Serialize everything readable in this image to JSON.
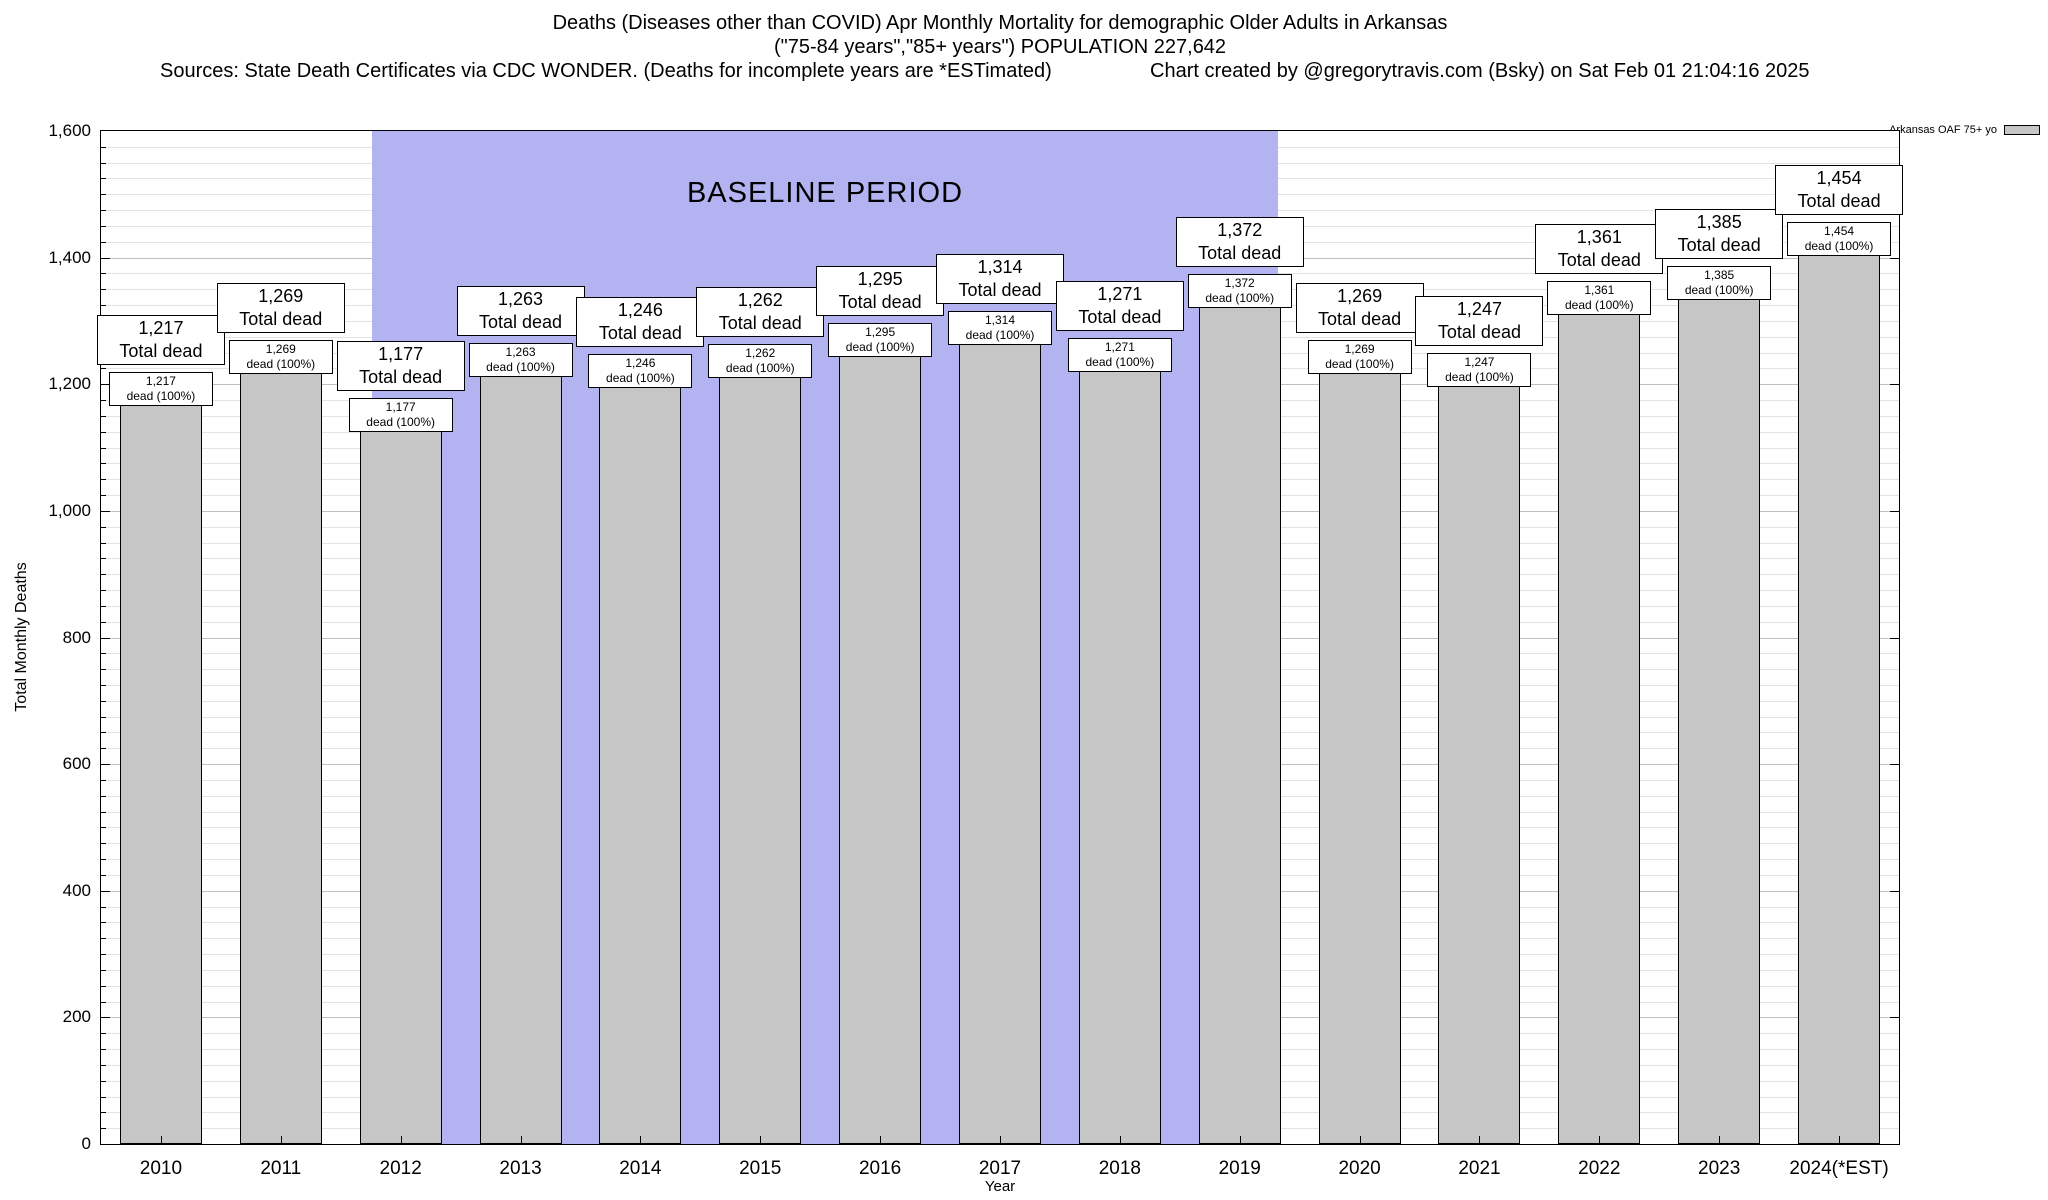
{
  "header": {
    "title_line1": "Deaths (Diseases other than COVID) Apr Monthly Mortality for demographic Older Adults in Arkansas",
    "title_line2": "(\"75-84 years\",\"85+ years\") POPULATION 227,642",
    "sources": "Sources: State Death Certificates via CDC WONDER. (Deaths for incomplete years are *ESTimated)",
    "credit": "Chart created by @gregorytravis.com (Bsky) on Sat Feb 01 21:04:16 2025"
  },
  "chart_data": {
    "type": "bar",
    "title": "Deaths (Diseases other than COVID) Apr Monthly Mortality for demographic Older Adults in Arkansas",
    "subtitle": "(\"75-84 years\",\"85+ years\") POPULATION 227,642",
    "xlabel": "Year",
    "ylabel": "Total Monthly Deaths",
    "ylim": [
      0,
      1600
    ],
    "ytick_interval": 200,
    "ytick_minor_interval": 25,
    "yticks": [
      "0",
      "200",
      "400",
      "600",
      "800",
      "1,000",
      "1,200",
      "1,400",
      "1,600"
    ],
    "grid": true,
    "legend_position": "top-right",
    "legend_label": "Arkansas OAF 75+ yo",
    "categories": [
      "2010",
      "2011",
      "2012",
      "2013",
      "2014",
      "2015",
      "2016",
      "2017",
      "2018",
      "2019",
      "2020",
      "2021",
      "2022",
      "2023",
      "2024(*EST)"
    ],
    "values": [
      1217,
      1269,
      1177,
      1263,
      1246,
      1262,
      1295,
      1314,
      1271,
      1372,
      1269,
      1247,
      1361,
      1385,
      1454
    ],
    "value_labels": [
      "1,217",
      "1,269",
      "1,177",
      "1,263",
      "1,246",
      "1,262",
      "1,295",
      "1,314",
      "1,271",
      "1,372",
      "1,269",
      "1,247",
      "1,361",
      "1,385",
      "1,454"
    ],
    "top_label_suffix": "Total dead",
    "inner_label_suffix": "dead (100%)",
    "bar_color": "#c6c6c6",
    "baseline": {
      "label": "BASELINE PERIOD",
      "from": "2012",
      "to": "2019",
      "color": "#b3b3f2"
    }
  }
}
